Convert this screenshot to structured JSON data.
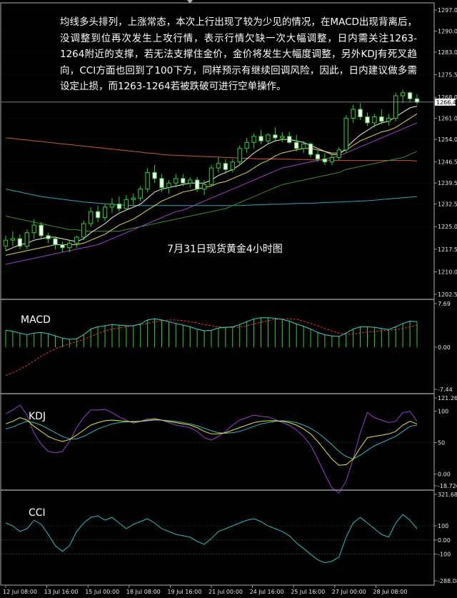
{
  "chart_data": {
    "type": "candlestick",
    "title": "7月31日现货黄金4小时图",
    "commentary": "均线多头排列，上涨常态，本次上行出现了较为少见的情况，在MACD出现背离后，没调整到位再次发生上攻行情，表示行情欠缺一次大幅调整，日内需关注1263-1264附近的支撑，若无法支撑住金价，金价将发生大幅度调整，另外KDJ有死叉趋向，CCI方面也回到了100下方，同样预示有继续回调风险，因此，日内建议做多需设定止损，而1263-1264若被跌破可进行空单操作。",
    "current_price_label": "1266.4",
    "price_axis": {
      "ylim": [
        1202.5,
        1297.0
      ],
      "ticks": [
        "1297.0",
        "1290.0",
        "1283.0",
        "1275.5",
        "1268.0",
        "1261.0",
        "1254.0",
        "1246.5",
        "1239.5",
        "1232.5",
        "1225.0",
        "1217.5",
        "1210.0",
        "1202.5"
      ]
    },
    "x_axis": {
      "tick_labels": [
        "12 Jul 08:00",
        "13 Jul 16:00",
        "15 Jul 00:00",
        "18 Jul 08:00",
        "19 Jul 16:00",
        "21 Jul 00:00",
        "24 Jul 16:00",
        "25 Jul 16:00",
        "27 Jul 00:00",
        "28 Jul 08:00"
      ]
    },
    "candles": [
      [
        1218.6,
        1222.0,
        1217.0,
        1220.5
      ],
      [
        1220.5,
        1223.5,
        1218.5,
        1221.0
      ],
      [
        1221.0,
        1222.5,
        1217.5,
        1218.5
      ],
      [
        1218.5,
        1224.0,
        1217.5,
        1223.0
      ],
      [
        1223.0,
        1227.5,
        1221.0,
        1225.5
      ],
      [
        1225.5,
        1226.5,
        1221.0,
        1222.0
      ],
      [
        1222.0,
        1223.0,
        1219.5,
        1221.0
      ],
      [
        1221.0,
        1221.5,
        1217.5,
        1219.0
      ],
      [
        1219.0,
        1220.0,
        1216.5,
        1218.0
      ],
      [
        1218.0,
        1220.5,
        1216.5,
        1219.5
      ],
      [
        1219.5,
        1222.0,
        1218.0,
        1221.5
      ],
      [
        1221.5,
        1227.0,
        1220.5,
        1226.0
      ],
      [
        1226.0,
        1231.5,
        1225.0,
        1230.0
      ],
      [
        1230.0,
        1232.0,
        1226.5,
        1228.0
      ],
      [
        1228.0,
        1232.5,
        1227.0,
        1231.5
      ],
      [
        1231.5,
        1234.5,
        1229.5,
        1232.5
      ],
      [
        1232.5,
        1235.0,
        1230.0,
        1231.0
      ],
      [
        1231.0,
        1235.5,
        1230.5,
        1234.0
      ],
      [
        1234.0,
        1236.0,
        1232.0,
        1234.5
      ],
      [
        1234.5,
        1238.5,
        1233.5,
        1237.5
      ],
      [
        1237.5,
        1244.5,
        1236.5,
        1243.0
      ],
      [
        1243.0,
        1245.5,
        1239.5,
        1241.0
      ],
      [
        1241.0,
        1242.5,
        1236.5,
        1238.0
      ],
      [
        1238.0,
        1240.5,
        1236.0,
        1239.5
      ],
      [
        1239.5,
        1242.5,
        1238.0,
        1241.0
      ],
      [
        1241.0,
        1242.5,
        1238.5,
        1239.5
      ],
      [
        1239.5,
        1241.5,
        1238.0,
        1240.5
      ],
      [
        1240.5,
        1241.5,
        1236.5,
        1237.5
      ],
      [
        1237.5,
        1240.5,
        1235.5,
        1239.0
      ],
      [
        1239.0,
        1245.5,
        1238.5,
        1244.5
      ],
      [
        1244.5,
        1248.0,
        1243.0,
        1246.0
      ],
      [
        1246.0,
        1247.5,
        1242.5,
        1244.0
      ],
      [
        1244.0,
        1247.5,
        1243.0,
        1246.5
      ],
      [
        1246.5,
        1252.0,
        1245.5,
        1251.0
      ],
      [
        1251.0,
        1254.5,
        1249.5,
        1253.0
      ],
      [
        1253.0,
        1256.0,
        1251.0,
        1255.0
      ],
      [
        1255.0,
        1257.0,
        1252.5,
        1253.5
      ],
      [
        1253.5,
        1256.0,
        1252.5,
        1255.5
      ],
      [
        1255.5,
        1258.0,
        1253.5,
        1254.5
      ],
      [
        1254.5,
        1256.5,
        1253.0,
        1255.0
      ],
      [
        1255.0,
        1256.5,
        1252.5,
        1253.0
      ],
      [
        1253.0,
        1255.5,
        1250.0,
        1251.0
      ],
      [
        1251.0,
        1253.5,
        1249.5,
        1252.5
      ],
      [
        1252.5,
        1253.0,
        1248.0,
        1249.0
      ],
      [
        1249.0,
        1250.5,
        1246.5,
        1247.5
      ],
      [
        1247.5,
        1249.5,
        1245.5,
        1246.5
      ],
      [
        1246.5,
        1249.0,
        1245.5,
        1248.0
      ],
      [
        1248.0,
        1251.5,
        1247.0,
        1250.5
      ],
      [
        1250.5,
        1262.0,
        1249.5,
        1261.0
      ],
      [
        1261.0,
        1265.5,
        1259.5,
        1264.0
      ],
      [
        1264.0,
        1266.0,
        1260.5,
        1261.5
      ],
      [
        1261.5,
        1263.0,
        1258.5,
        1259.5
      ],
      [
        1259.5,
        1262.5,
        1258.0,
        1261.5
      ],
      [
        1261.5,
        1264.0,
        1259.0,
        1260.0
      ],
      [
        1260.0,
        1262.5,
        1258.5,
        1261.0
      ],
      [
        1261.0,
        1269.5,
        1260.0,
        1268.5
      ],
      [
        1268.5,
        1270.5,
        1266.0,
        1269.5
      ],
      [
        1269.5,
        1270.0,
        1266.5,
        1267.5
      ],
      [
        1267.5,
        1269.0,
        1265.5,
        1266.4
      ]
    ],
    "ma_lines": {
      "fast": [
        1217.0,
        1218.0,
        1219.0,
        1219.5,
        1220.5,
        1221.0,
        1221.5,
        1221.5,
        1221.0,
        1220.5,
        1220.0,
        1221.0,
        1223.0,
        1224.5,
        1226.0,
        1228.0,
        1229.5,
        1230.5,
        1231.5,
        1232.5,
        1234.5,
        1236.5,
        1237.5,
        1238.0,
        1238.5,
        1239.0,
        1239.5,
        1239.5,
        1239.5,
        1240.5,
        1242.0,
        1243.0,
        1244.0,
        1245.5,
        1247.5,
        1249.5,
        1251.0,
        1252.5,
        1253.5,
        1254.0,
        1254.0,
        1253.5,
        1253.0,
        1252.0,
        1251.0,
        1250.0,
        1249.0,
        1249.0,
        1251.0,
        1253.5,
        1255.5,
        1257.0,
        1258.5,
        1259.5,
        1260.0,
        1261.5,
        1263.0,
        1264.5,
        1265.0
      ],
      "medium": [
        1215.5,
        1216.0,
        1216.5,
        1217.0,
        1217.5,
        1218.0,
        1218.5,
        1219.0,
        1219.0,
        1219.0,
        1219.0,
        1219.5,
        1220.5,
        1221.5,
        1222.5,
        1224.0,
        1225.5,
        1226.5,
        1227.5,
        1229.0,
        1230.5,
        1232.0,
        1233.5,
        1234.5,
        1235.5,
        1236.5,
        1237.0,
        1237.5,
        1238.0,
        1238.5,
        1239.5,
        1240.0,
        1241.0,
        1242.0,
        1243.0,
        1244.5,
        1246.0,
        1247.0,
        1248.5,
        1249.5,
        1250.0,
        1250.5,
        1251.0,
        1251.0,
        1250.5,
        1250.0,
        1249.5,
        1249.5,
        1250.5,
        1252.0,
        1253.5,
        1254.5,
        1255.5,
        1256.5,
        1257.0,
        1258.0,
        1259.5,
        1261.0,
        1262.5
      ],
      "slow": [
        1212.5,
        1213.0,
        1213.5,
        1214.0,
        1214.5,
        1215.0,
        1215.5,
        1216.0,
        1216.5,
        1217.0,
        1217.5,
        1218.0,
        1218.5,
        1219.0,
        1220.0,
        1221.0,
        1222.0,
        1223.0,
        1224.0,
        1225.0,
        1226.0,
        1227.0,
        1228.0,
        1229.0,
        1230.0,
        1230.5,
        1231.5,
        1232.5,
        1233.5,
        1234.5,
        1235.5,
        1236.5,
        1237.5,
        1238.5,
        1239.5,
        1240.5,
        1241.5,
        1242.5,
        1243.5,
        1244.5,
        1245.0,
        1245.5,
        1246.0,
        1246.5,
        1247.0,
        1247.5,
        1248.0,
        1248.5,
        1249.5,
        1250.5,
        1251.5,
        1252.5,
        1253.5,
        1254.5,
        1255.5,
        1256.5,
        1257.5,
        1258.5,
        1259.5
      ],
      "long_green": [
        1228.5,
        1228.0,
        1227.5,
        1227.0,
        1226.5,
        1226.0,
        1225.5,
        1225.0,
        1224.5,
        1224.0,
        1224.0,
        1223.5,
        1223.5,
        1223.5,
        1223.5,
        1223.5,
        1223.5,
        1224.0,
        1224.5,
        1225.0,
        1225.5,
        1226.0,
        1226.5,
        1227.0,
        1227.5,
        1228.0,
        1228.5,
        1229.0,
        1229.5,
        1230.0,
        1230.5,
        1231.0,
        1232.0,
        1233.0,
        1234.0,
        1235.0,
        1236.0,
        1237.0,
        1238.0,
        1239.0,
        1239.5,
        1240.0,
        1240.5,
        1241.0,
        1241.5,
        1242.0,
        1242.5,
        1243.0,
        1244.0,
        1244.5,
        1245.0,
        1245.5,
        1246.0,
        1246.5,
        1247.0,
        1247.5,
        1248.0,
        1249.0,
        1250.0
      ],
      "long_orange": [
        1254.5,
        1254.3,
        1254.0,
        1253.8,
        1253.5,
        1253.3,
        1253.0,
        1252.8,
        1252.5,
        1252.3,
        1252.0,
        1251.8,
        1251.5,
        1251.3,
        1251.0,
        1250.8,
        1250.5,
        1250.3,
        1250.0,
        1249.8,
        1249.5,
        1249.3,
        1249.0,
        1248.8,
        1248.7,
        1248.6,
        1248.5,
        1248.4,
        1248.3,
        1248.2,
        1248.1,
        1248.0,
        1247.9,
        1247.8,
        1247.7,
        1247.6,
        1247.5,
        1247.5,
        1247.5,
        1247.4,
        1247.4,
        1247.3,
        1247.3,
        1247.2,
        1247.2,
        1247.1,
        1247.1,
        1247.0,
        1247.0,
        1247.0,
        1247.0,
        1247.0,
        1247.0,
        1247.0,
        1247.0,
        1247.0,
        1247.0,
        1247.0,
        1246.8
      ],
      "long_cyan": [
        1237.5,
        1237.0,
        1236.5,
        1236.0,
        1235.5,
        1235.0,
        1234.7,
        1234.4,
        1234.1,
        1233.8,
        1233.5,
        1233.2,
        1233.0,
        1232.8,
        1232.6,
        1232.4,
        1232.2,
        1232.1,
        1232.0,
        1232.0,
        1232.0,
        1232.0,
        1232.0,
        1232.0,
        1232.0,
        1232.0,
        1232.0,
        1232.0,
        1232.0,
        1232.0,
        1232.0,
        1232.0,
        1232.0,
        1232.0,
        1232.1,
        1232.2,
        1232.3,
        1232.4,
        1232.5,
        1232.5,
        1232.6,
        1232.7,
        1232.8,
        1232.8,
        1232.9,
        1233.0,
        1233.1,
        1233.2,
        1233.3,
        1233.4,
        1233.5,
        1233.6,
        1233.8,
        1234.0,
        1234.2,
        1234.4,
        1234.6,
        1234.8,
        1235.0
      ]
    },
    "macd": {
      "label": "MACD",
      "ylim": [
        -7.44,
        7.69
      ],
      "ticks": [
        "7.69",
        "0.00",
        "-7.44"
      ],
      "histogram": [
        3.0,
        2.8,
        2.5,
        2.2,
        2.5,
        2.6,
        2.4,
        2.0,
        1.6,
        1.4,
        1.5,
        2.2,
        3.2,
        3.6,
        3.8,
        4.0,
        3.9,
        3.8,
        3.8,
        4.1,
        4.8,
        5.0,
        4.8,
        4.5,
        4.2,
        3.9,
        3.6,
        3.2,
        2.9,
        3.0,
        3.4,
        3.5,
        3.6,
        4.0,
        4.5,
        5.0,
        5.2,
        5.2,
        5.1,
        4.9,
        4.6,
        4.1,
        3.7,
        3.2,
        2.6,
        2.2,
        2.0,
        1.9,
        2.5,
        3.2,
        3.6,
        3.6,
        3.5,
        3.3,
        3.1,
        3.6,
        4.2,
        4.6,
        4.5
      ],
      "signal": [
        -5.0,
        -4.5,
        -3.9,
        -3.2,
        -2.4,
        -1.6,
        -0.9,
        -0.3,
        0.2,
        0.6,
        1.0,
        1.4,
        1.9,
        2.4,
        2.9,
        3.2,
        3.4,
        3.6,
        3.8,
        4.0,
        4.2,
        4.5,
        4.7,
        4.8,
        4.8,
        4.7,
        4.5,
        4.3,
        4.0,
        3.8,
        3.6,
        3.5,
        3.5,
        3.6,
        3.8,
        4.1,
        4.4,
        4.7,
        4.9,
        5.0,
        5.0,
        4.9,
        4.6,
        4.2,
        3.8,
        3.3,
        2.9,
        2.5,
        2.3,
        2.3,
        2.5,
        2.7,
        2.8,
        2.9,
        3.0,
        3.1,
        3.3,
        3.6,
        3.9
      ]
    },
    "kdj": {
      "label": "KDJ",
      "ylim": [
        -18.7264,
        121.267
      ],
      "ticks": [
        "121.267",
        "100",
        "50",
        "0.00",
        "-18.7264"
      ],
      "k": [
        80,
        84,
        90,
        86,
        76,
        68,
        60,
        55,
        52,
        55,
        62,
        70,
        78,
        82,
        85,
        86,
        85,
        84,
        83,
        84,
        86,
        87,
        86,
        84,
        82,
        80,
        78,
        74,
        68,
        64,
        64,
        66,
        70,
        74,
        78,
        82,
        84,
        85,
        85,
        84,
        82,
        78,
        72,
        64,
        52,
        38,
        24,
        14,
        15,
        24,
        42,
        58,
        60,
        62,
        64,
        68,
        78,
        84,
        80
      ],
      "d": [
        72,
        75,
        80,
        84,
        82,
        78,
        72,
        66,
        60,
        56,
        56,
        60,
        66,
        72,
        76,
        80,
        82,
        83,
        84,
        84,
        85,
        86,
        86,
        85,
        84,
        82,
        80,
        77,
        73,
        69,
        66,
        65,
        66,
        68,
        72,
        76,
        80,
        82,
        84,
        85,
        84,
        82,
        78,
        73,
        66,
        57,
        47,
        36,
        28,
        24,
        30,
        38,
        45,
        50,
        55,
        60,
        68,
        76,
        78
      ],
      "j": [
        96,
        102,
        110,
        94,
        65,
        48,
        36,
        34,
        36,
        52,
        74,
        90,
        102,
        102,
        103,
        98,
        91,
        86,
        81,
        84,
        88,
        89,
        86,
        82,
        78,
        76,
        74,
        68,
        58,
        54,
        60,
        68,
        78,
        86,
        90,
        94,
        92,
        91,
        87,
        82,
        78,
        70,
        60,
        46,
        24,
        0,
        -22,
        -30,
        -11,
        24,
        66,
        98,
        90,
        86,
        82,
        84,
        98,
        100,
        84
      ]
    },
    "cci": {
      "label": "CCI",
      "ylim": [
        -288.084,
        321.6827
      ],
      "ticks": [
        "321.6827",
        "100",
        "0.00",
        "-100",
        "-288.084"
      ],
      "values": [
        120,
        100,
        60,
        80,
        140,
        110,
        40,
        -40,
        -80,
        -40,
        60,
        120,
        160,
        170,
        140,
        160,
        120,
        80,
        110,
        130,
        150,
        120,
        80,
        60,
        40,
        30,
        20,
        -10,
        -30,
        10,
        60,
        80,
        100,
        120,
        140,
        150,
        130,
        100,
        80,
        60,
        30,
        -20,
        -60,
        -100,
        -140,
        -160,
        -150,
        -120,
        20,
        120,
        160,
        120,
        80,
        40,
        20,
        120,
        180,
        140,
        80
      ]
    }
  }
}
